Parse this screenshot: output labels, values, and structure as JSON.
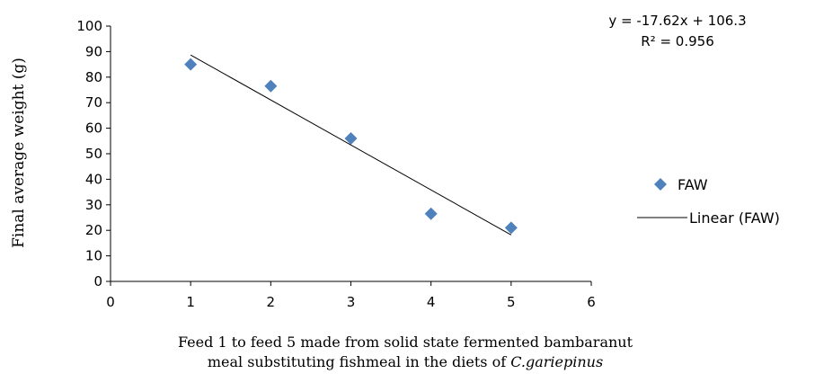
{
  "chart_data": {
    "type": "scatter",
    "title": "",
    "xlabel_line1": "Feed 1 to feed 5 made from solid state fermented bambaranut",
    "xlabel_line2_prefix": "meal substituting fishmeal in the diets of ",
    "xlabel_line2_species": "C.gariepinus",
    "ylabel": "Final average weight (g)",
    "xlim": [
      0,
      6
    ],
    "ylim": [
      0,
      100
    ],
    "x_ticks": [
      0,
      1,
      2,
      3,
      4,
      5,
      6
    ],
    "y_ticks": [
      0,
      10,
      20,
      30,
      40,
      50,
      60,
      70,
      80,
      90,
      100
    ],
    "grid": false,
    "legend_position": "right",
    "series": [
      {
        "name": "FAW",
        "marker": "diamond",
        "color": "#4f81bd",
        "x": [
          1,
          2,
          3,
          4,
          5
        ],
        "y": [
          85,
          76.5,
          56,
          26.5,
          21
        ]
      }
    ],
    "trendline": {
      "name": "Linear (FAW)",
      "type": "linear",
      "slope": -17.62,
      "intercept": 106.3,
      "x_range": [
        1,
        5
      ],
      "color": "#000000"
    },
    "equation_label": "y = -17.62x + 106.3",
    "r2_label": "R² = 0.956"
  }
}
